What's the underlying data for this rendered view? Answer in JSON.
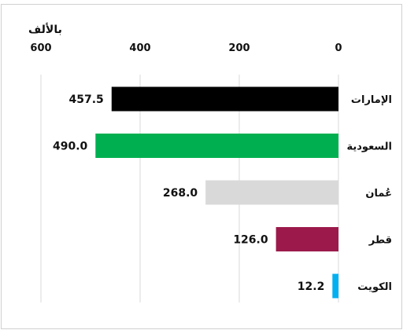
{
  "chart_data": {
    "type": "bar",
    "orientation": "horizontal",
    "x_direction": "right-to-left",
    "unit_label": "بالألف",
    "categories": [
      "الإمارات",
      "السعودية",
      "عُمان",
      "قطر",
      "الكويت"
    ],
    "values": [
      457.5,
      490.0,
      268.0,
      126.0,
      12.2
    ],
    "value_labels": [
      "457.5",
      "490.0",
      "268.0",
      "126.0",
      "12.2"
    ],
    "bar_colors": [
      "#000000",
      "#00b050",
      "#d9d9d9",
      "#9b1a4b",
      "#00b0f0"
    ],
    "xlim": [
      0,
      600
    ],
    "xticks": [
      0,
      200,
      400,
      600
    ],
    "xtick_labels": [
      "0",
      "200",
      "400",
      "600"
    ],
    "grid": true,
    "legend": "none"
  }
}
